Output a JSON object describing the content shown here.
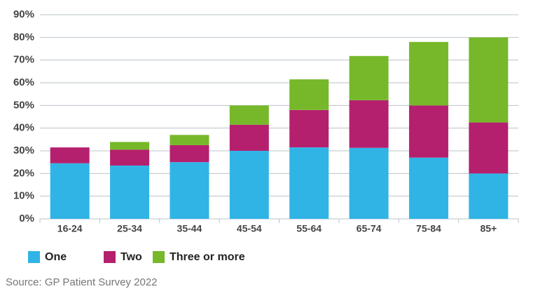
{
  "chart_data": {
    "type": "stacked_bar",
    "categories": [
      "16-24",
      "25-34",
      "35-44",
      "45-54",
      "55-64",
      "65-74",
      "75-84",
      "85+"
    ],
    "series": [
      {
        "name": "One",
        "color": "#30b4e6",
        "values": [
          24.5,
          23.5,
          25,
          30,
          31.5,
          31.3,
          27,
          20
        ]
      },
      {
        "name": "Two",
        "color": "#b5206e",
        "values": [
          7,
          7,
          7.5,
          11.5,
          16.5,
          21,
          23,
          22.5
        ]
      },
      {
        "name": "Three or more",
        "color": "#76b82a",
        "values": [
          0,
          3.4,
          4.5,
          8.5,
          13.5,
          19.5,
          28,
          37.5
        ]
      }
    ],
    "ylim": [
      0,
      90
    ],
    "yticks": [
      {
        "value": 0,
        "label": "0%"
      },
      {
        "value": 10,
        "label": "10%"
      },
      {
        "value": 20,
        "label": "20%"
      },
      {
        "value": 30,
        "label": "30%"
      },
      {
        "value": 40,
        "label": "40%"
      },
      {
        "value": 50,
        "label": "50%"
      },
      {
        "value": 60,
        "label": "60%"
      },
      {
        "value": 70,
        "label": "70%"
      },
      {
        "value": 80,
        "label": "80%"
      },
      {
        "value": 90,
        "label": "90%"
      }
    ],
    "grid": true,
    "source": "Source: GP Patient Survey 2022"
  }
}
